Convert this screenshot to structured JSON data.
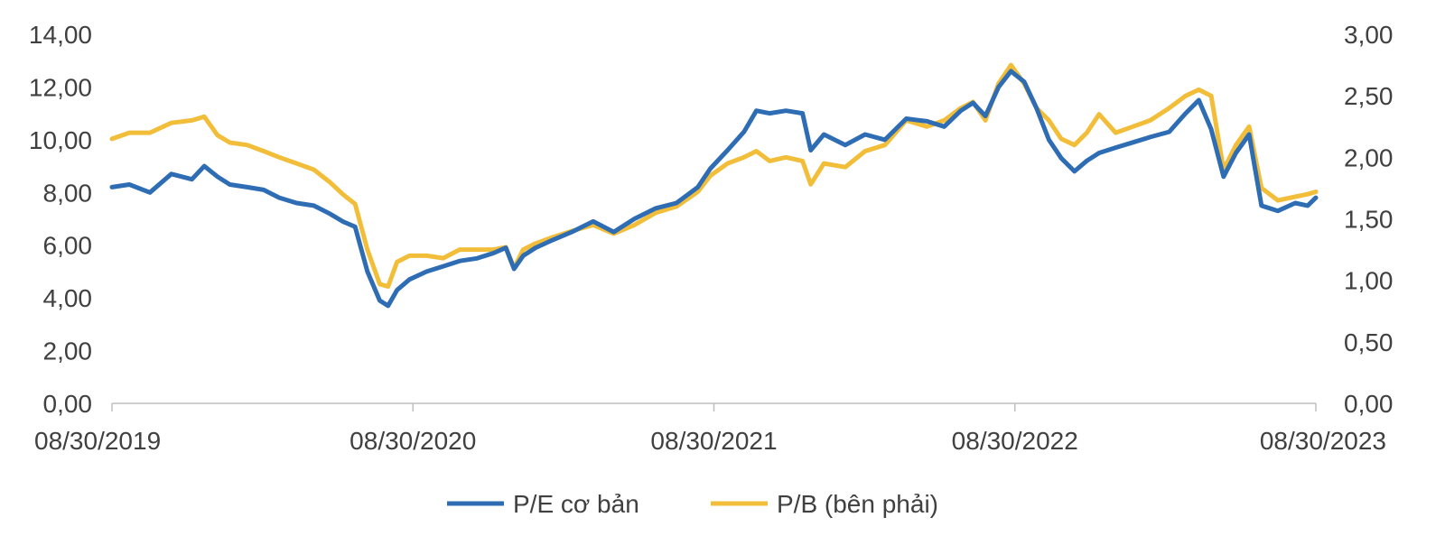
{
  "chart_data": {
    "type": "line",
    "title": "",
    "xlabel": "",
    "x_ticks": [
      "08/30/2019",
      "08/30/2020",
      "08/30/2021",
      "08/30/2022",
      "08/30/2023"
    ],
    "x_range": [
      "2019-08-30",
      "2023-08-30"
    ],
    "y_left": {
      "range": [
        0,
        14
      ],
      "ticks": [
        "0,00",
        "2,00",
        "4,00",
        "6,00",
        "8,00",
        "10,00",
        "12,00",
        "14,00"
      ]
    },
    "y_right": {
      "range": [
        0,
        3
      ],
      "ticks": [
        "0,00",
        "0,50",
        "1,00",
        "1,50",
        "2,00",
        "2,50",
        "3,00"
      ]
    },
    "grid": false,
    "legend": {
      "position": "bottom-center"
    },
    "series": [
      {
        "name": "P/E cơ bản",
        "axis": "left",
        "color": "#2E6DB4",
        "points": [
          [
            "2019-08-30",
            8.2
          ],
          [
            "2019-09-20",
            8.3
          ],
          [
            "2019-10-15",
            8.0
          ],
          [
            "2019-11-10",
            8.7
          ],
          [
            "2019-12-05",
            8.5
          ],
          [
            "2019-12-20",
            9.0
          ],
          [
            "2020-01-05",
            8.6
          ],
          [
            "2020-01-20",
            8.3
          ],
          [
            "2020-02-10",
            8.2
          ],
          [
            "2020-03-01",
            8.1
          ],
          [
            "2020-03-20",
            7.8
          ],
          [
            "2020-04-10",
            7.6
          ],
          [
            "2020-05-01",
            7.5
          ],
          [
            "2020-05-20",
            7.2
          ],
          [
            "2020-06-05",
            6.9
          ],
          [
            "2020-06-20",
            6.7
          ],
          [
            "2020-07-05",
            5.0
          ],
          [
            "2020-07-20",
            3.9
          ],
          [
            "2020-07-30",
            3.7
          ],
          [
            "2020-08-10",
            4.3
          ],
          [
            "2020-08-25",
            4.7
          ],
          [
            "2020-09-15",
            5.0
          ],
          [
            "2020-10-05",
            5.2
          ],
          [
            "2020-10-25",
            5.4
          ],
          [
            "2020-11-15",
            5.5
          ],
          [
            "2020-12-05",
            5.7
          ],
          [
            "2020-12-20",
            5.9
          ],
          [
            "2020-12-30",
            5.1
          ],
          [
            "2021-01-10",
            5.6
          ],
          [
            "2021-01-25",
            5.9
          ],
          [
            "2021-02-15",
            6.2
          ],
          [
            "2021-03-10",
            6.5
          ],
          [
            "2021-04-05",
            6.9
          ],
          [
            "2021-04-30",
            6.5
          ],
          [
            "2021-05-25",
            7.0
          ],
          [
            "2021-06-20",
            7.4
          ],
          [
            "2021-07-15",
            7.6
          ],
          [
            "2021-08-10",
            8.2
          ],
          [
            "2021-08-25",
            8.9
          ],
          [
            "2021-09-15",
            9.6
          ],
          [
            "2021-10-05",
            10.3
          ],
          [
            "2021-10-20",
            11.1
          ],
          [
            "2021-11-05",
            11.0
          ],
          [
            "2021-11-25",
            11.1
          ],
          [
            "2021-12-15",
            11.0
          ],
          [
            "2021-12-25",
            9.6
          ],
          [
            "2022-01-10",
            10.2
          ],
          [
            "2022-02-05",
            9.8
          ],
          [
            "2022-03-01",
            10.2
          ],
          [
            "2022-03-25",
            10.0
          ],
          [
            "2022-04-20",
            10.8
          ],
          [
            "2022-05-15",
            10.7
          ],
          [
            "2022-06-05",
            10.5
          ],
          [
            "2022-06-25",
            11.1
          ],
          [
            "2022-07-10",
            11.4
          ],
          [
            "2022-07-25",
            10.9
          ],
          [
            "2022-08-10",
            12.0
          ],
          [
            "2022-08-25",
            12.6
          ],
          [
            "2022-09-10",
            12.2
          ],
          [
            "2022-09-25",
            11.2
          ],
          [
            "2022-10-10",
            10.0
          ],
          [
            "2022-10-25",
            9.3
          ],
          [
            "2022-11-10",
            8.8
          ],
          [
            "2022-11-25",
            9.2
          ],
          [
            "2022-12-10",
            9.5
          ],
          [
            "2022-12-30",
            9.7
          ],
          [
            "2023-01-20",
            9.9
          ],
          [
            "2023-02-10",
            10.1
          ],
          [
            "2023-03-05",
            10.3
          ],
          [
            "2023-03-25",
            11.0
          ],
          [
            "2023-04-10",
            11.5
          ],
          [
            "2023-04-25",
            10.4
          ],
          [
            "2023-05-10",
            8.6
          ],
          [
            "2023-05-25",
            9.5
          ],
          [
            "2023-06-10",
            10.2
          ],
          [
            "2023-06-25",
            7.5
          ],
          [
            "2023-07-15",
            7.3
          ],
          [
            "2023-08-05",
            7.6
          ],
          [
            "2023-08-20",
            7.5
          ],
          [
            "2023-08-30",
            7.8
          ]
        ]
      },
      {
        "name": "P/B (bên phải)",
        "axis": "right",
        "color": "#F2BE3A",
        "points": [
          [
            "2019-08-30",
            2.15
          ],
          [
            "2019-09-20",
            2.2
          ],
          [
            "2019-10-15",
            2.2
          ],
          [
            "2019-11-10",
            2.28
          ],
          [
            "2019-12-05",
            2.3
          ],
          [
            "2019-12-20",
            2.33
          ],
          [
            "2020-01-05",
            2.18
          ],
          [
            "2020-01-20",
            2.12
          ],
          [
            "2020-02-10",
            2.1
          ],
          [
            "2020-03-01",
            2.05
          ],
          [
            "2020-03-20",
            2.0
          ],
          [
            "2020-04-10",
            1.95
          ],
          [
            "2020-05-01",
            1.9
          ],
          [
            "2020-05-20",
            1.8
          ],
          [
            "2020-06-05",
            1.7
          ],
          [
            "2020-06-20",
            1.62
          ],
          [
            "2020-07-05",
            1.25
          ],
          [
            "2020-07-20",
            0.97
          ],
          [
            "2020-07-30",
            0.95
          ],
          [
            "2020-08-10",
            1.15
          ],
          [
            "2020-08-25",
            1.2
          ],
          [
            "2020-09-15",
            1.2
          ],
          [
            "2020-10-05",
            1.18
          ],
          [
            "2020-10-25",
            1.25
          ],
          [
            "2020-11-15",
            1.25
          ],
          [
            "2020-12-05",
            1.25
          ],
          [
            "2020-12-20",
            1.27
          ],
          [
            "2020-12-30",
            1.1
          ],
          [
            "2021-01-10",
            1.25
          ],
          [
            "2021-01-25",
            1.3
          ],
          [
            "2021-02-15",
            1.35
          ],
          [
            "2021-03-10",
            1.4
          ],
          [
            "2021-04-05",
            1.45
          ],
          [
            "2021-04-30",
            1.38
          ],
          [
            "2021-05-25",
            1.45
          ],
          [
            "2021-06-20",
            1.55
          ],
          [
            "2021-07-15",
            1.6
          ],
          [
            "2021-08-10",
            1.72
          ],
          [
            "2021-08-25",
            1.85
          ],
          [
            "2021-09-15",
            1.95
          ],
          [
            "2021-10-05",
            2.0
          ],
          [
            "2021-10-20",
            2.05
          ],
          [
            "2021-11-05",
            1.97
          ],
          [
            "2021-11-25",
            2.0
          ],
          [
            "2021-12-15",
            1.97
          ],
          [
            "2021-12-25",
            1.78
          ],
          [
            "2022-01-10",
            1.95
          ],
          [
            "2022-02-05",
            1.92
          ],
          [
            "2022-03-01",
            2.05
          ],
          [
            "2022-03-25",
            2.1
          ],
          [
            "2022-04-20",
            2.3
          ],
          [
            "2022-05-15",
            2.25
          ],
          [
            "2022-06-05",
            2.3
          ],
          [
            "2022-06-25",
            2.4
          ],
          [
            "2022-07-10",
            2.45
          ],
          [
            "2022-07-25",
            2.3
          ],
          [
            "2022-08-10",
            2.6
          ],
          [
            "2022-08-25",
            2.75
          ],
          [
            "2022-09-10",
            2.6
          ],
          [
            "2022-09-25",
            2.4
          ],
          [
            "2022-10-10",
            2.3
          ],
          [
            "2022-10-25",
            2.15
          ],
          [
            "2022-11-10",
            2.1
          ],
          [
            "2022-11-25",
            2.2
          ],
          [
            "2022-12-10",
            2.35
          ],
          [
            "2022-12-30",
            2.2
          ],
          [
            "2023-01-20",
            2.25
          ],
          [
            "2023-02-10",
            2.3
          ],
          [
            "2023-03-05",
            2.4
          ],
          [
            "2023-03-25",
            2.5
          ],
          [
            "2023-04-10",
            2.55
          ],
          [
            "2023-04-25",
            2.5
          ],
          [
            "2023-05-10",
            1.9
          ],
          [
            "2023-05-25",
            2.1
          ],
          [
            "2023-06-10",
            2.25
          ],
          [
            "2023-06-25",
            1.75
          ],
          [
            "2023-07-15",
            1.65
          ],
          [
            "2023-08-05",
            1.68
          ],
          [
            "2023-08-20",
            1.7
          ],
          [
            "2023-08-30",
            1.72
          ]
        ]
      }
    ]
  }
}
